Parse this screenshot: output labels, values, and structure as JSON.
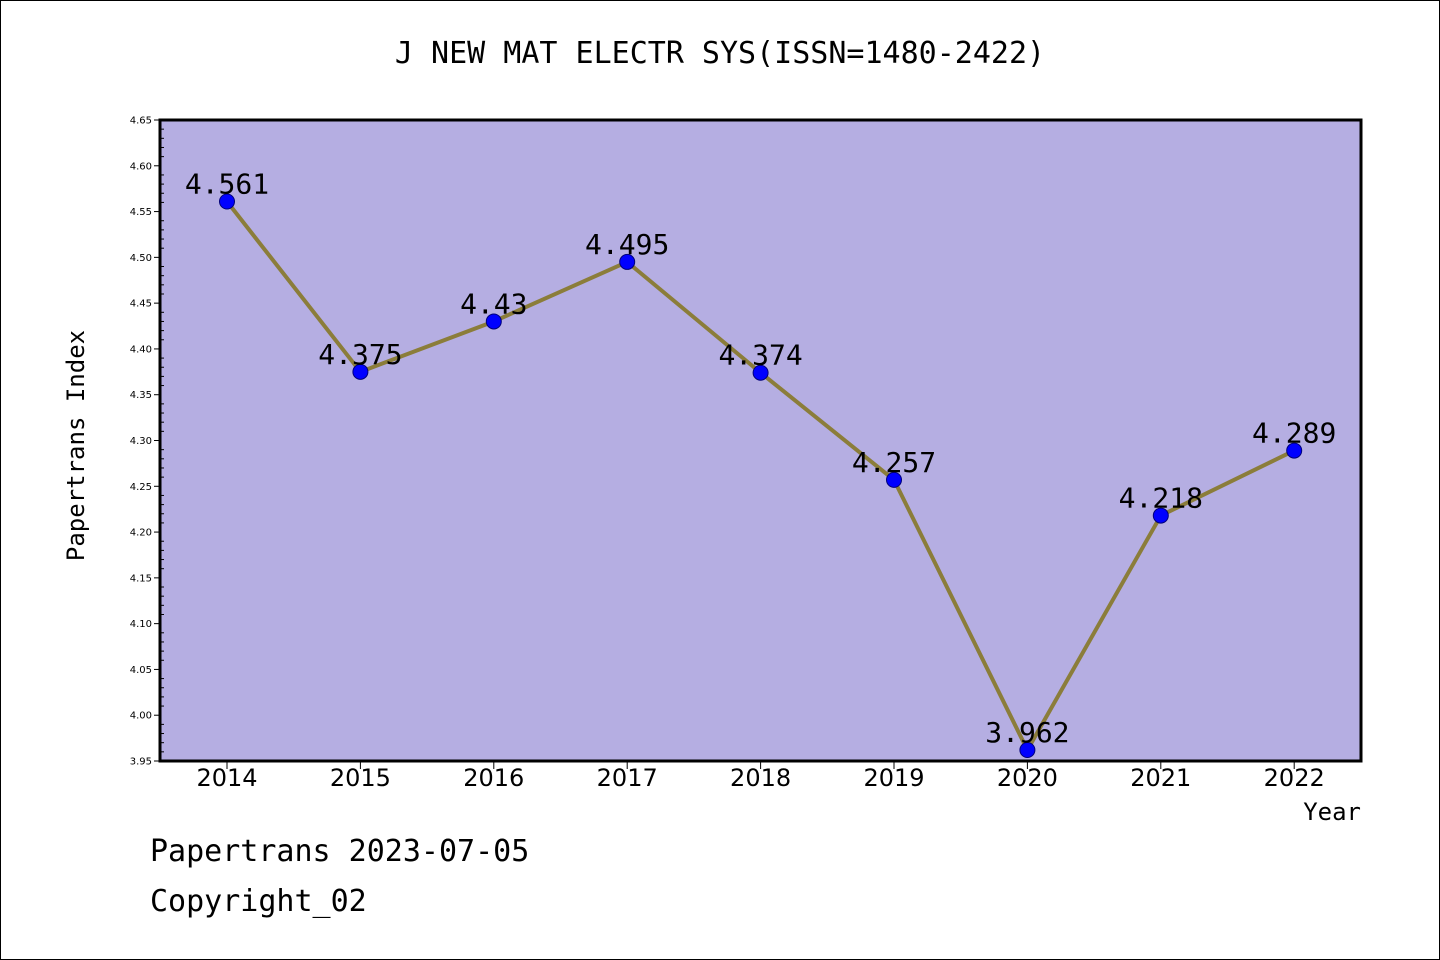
{
  "title": "J NEW MAT ELECTR SYS(ISSN=1480-2422)",
  "footer": {
    "date_line": "Papertrans 2023-07-05",
    "copyright_line": "Copyright_02"
  },
  "chart_data": {
    "type": "line",
    "title": "J NEW MAT ELECTR SYS(ISSN=1480-2422)",
    "xlabel": "Year",
    "ylabel": "Papertrans Index",
    "categories": [
      "2014",
      "2015",
      "2016",
      "2017",
      "2018",
      "2019",
      "2020",
      "2021",
      "2022"
    ],
    "series": [
      {
        "values": [
          4.561,
          4.375,
          4.43,
          4.495,
          4.374,
          4.257,
          3.962,
          4.218,
          4.289
        ]
      }
    ],
    "data_labels": [
      "4.561",
      "4.375",
      "4.43",
      "4.495",
      "4.374",
      "4.257",
      "3.962",
      "4.218",
      "4.289"
    ],
    "ylim": [
      3.95,
      4.65
    ],
    "yticks": [
      "3.95",
      "4.00",
      "4.05",
      "4.10",
      "4.15",
      "4.20",
      "4.25",
      "4.30",
      "4.35",
      "4.40",
      "4.45",
      "4.50",
      "4.55",
      "4.60",
      "4.65"
    ],
    "grid": false,
    "legend": "none",
    "colors": {
      "plot_background": "#b5aee2",
      "line": "#8b7d3a",
      "marker": "#0000ff"
    }
  }
}
